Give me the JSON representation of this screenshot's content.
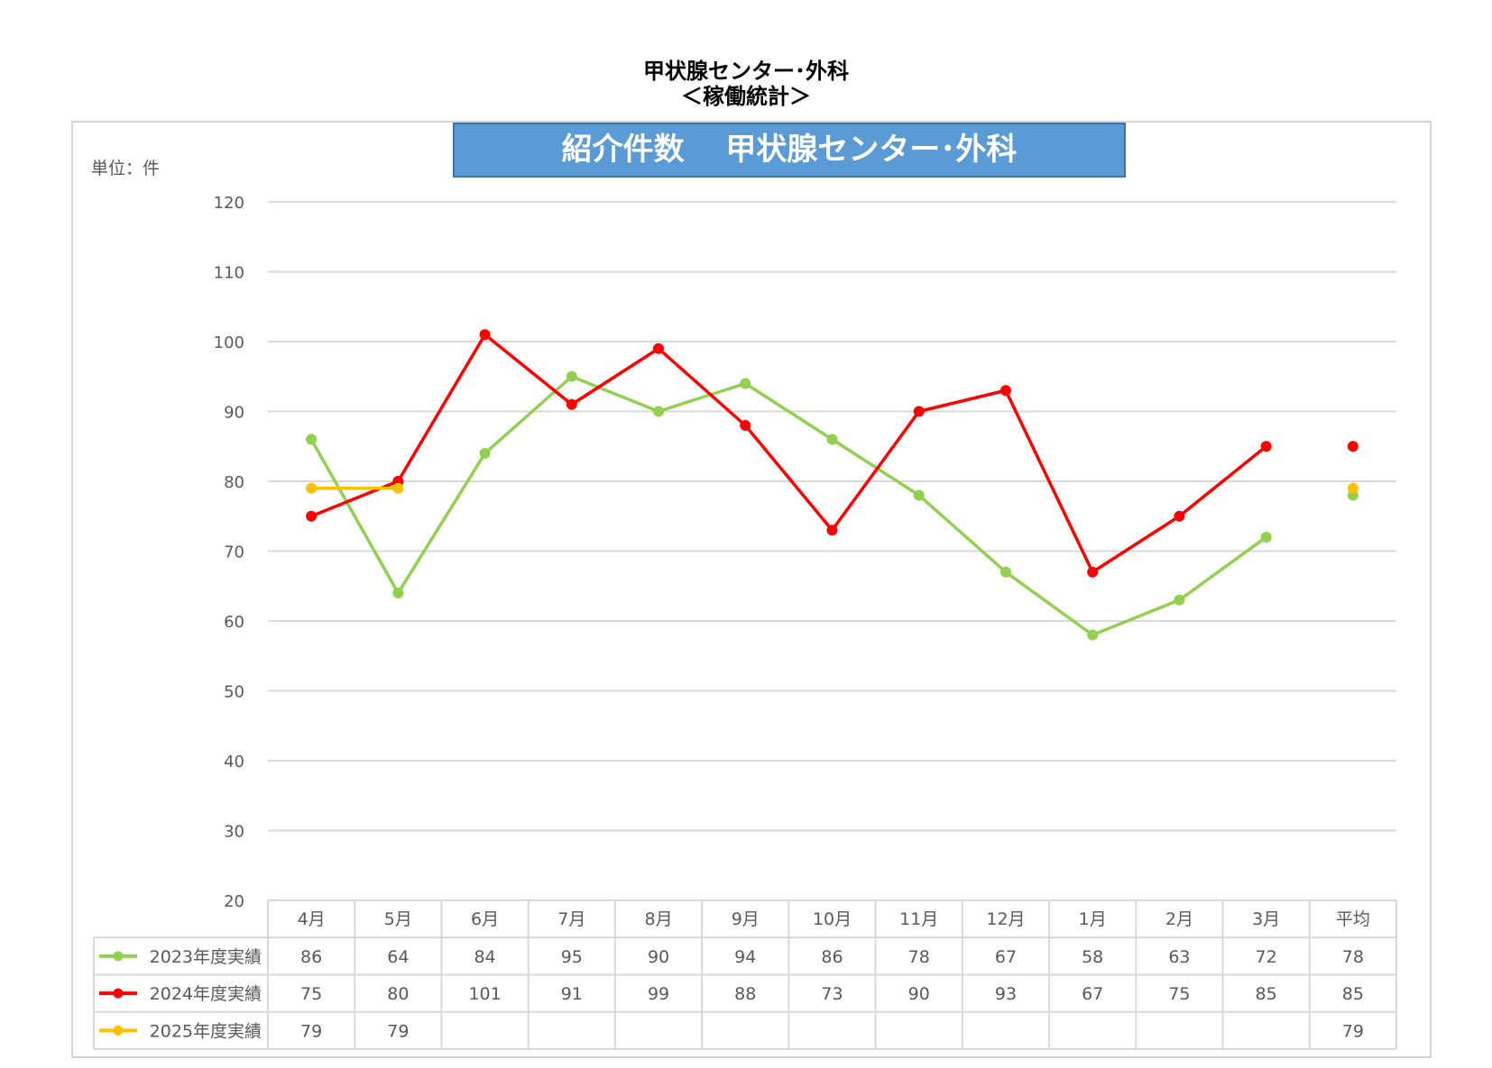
{
  "header": {
    "title_line1": "甲状腺センター･外科",
    "title_line2": "＜稼働統計＞"
  },
  "chart_data": {
    "type": "line",
    "title": "紹介件数　 甲状腺センター･外科",
    "unit_label": "単位：件",
    "categories": [
      "4月",
      "5月",
      "6月",
      "7月",
      "8月",
      "9月",
      "10月",
      "11月",
      "12月",
      "1月",
      "2月",
      "3月",
      "平均"
    ],
    "ylim": [
      20,
      120
    ],
    "yticks": [
      20,
      30,
      40,
      50,
      60,
      70,
      80,
      90,
      100,
      110,
      120
    ],
    "grid": true,
    "legend": "data-table",
    "average_category": "平均",
    "series": [
      {
        "name": "2023年度実績",
        "color": "#92d050",
        "values": [
          86,
          64,
          84,
          95,
          90,
          94,
          86,
          78,
          67,
          58,
          63,
          72,
          78
        ]
      },
      {
        "name": "2024年度実績",
        "color": "#ff0000",
        "values": [
          75,
          80,
          101,
          91,
          99,
          88,
          73,
          90,
          93,
          67,
          75,
          85,
          85
        ]
      },
      {
        "name": "2025年度実績",
        "color": "#ffc000",
        "values": [
          79,
          79,
          null,
          null,
          null,
          null,
          null,
          null,
          null,
          null,
          null,
          null,
          79
        ]
      }
    ]
  }
}
